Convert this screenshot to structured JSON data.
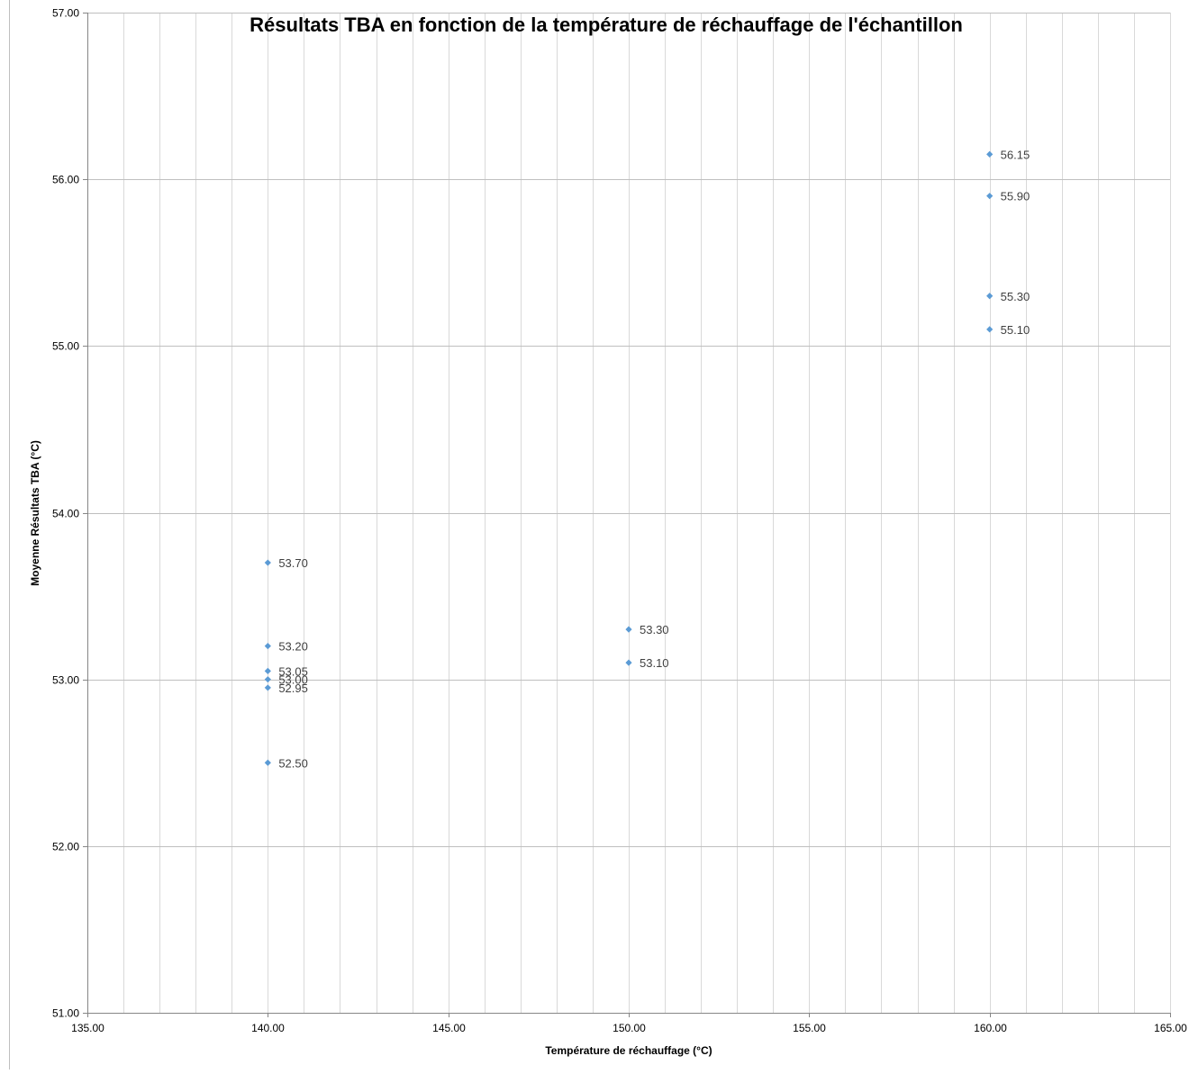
{
  "chart_data": {
    "type": "scatter",
    "title": "Résultats TBA en fonction de la température de réchauffage de l'échantillon",
    "xlabel": "Température de réchauffage (°C)",
    "ylabel": "Moyenne Résultats TBA (°C)",
    "xlim": [
      135,
      165
    ],
    "ylim": [
      51,
      57
    ],
    "x_major_step": 5,
    "x_minor_step": 1,
    "y_major_step": 1,
    "x_tick_labels": [
      "135.00",
      "140.00",
      "145.00",
      "150.00",
      "155.00",
      "160.00",
      "165.00"
    ],
    "y_tick_labels": [
      "51.00",
      "52.00",
      "53.00",
      "54.00",
      "55.00",
      "56.00",
      "57.00"
    ],
    "grid": "on",
    "legend": "none",
    "marker_color": "#5b9bd5",
    "series": [
      {
        "x": [
          140,
          140,
          140,
          140,
          140,
          140,
          150,
          150,
          160,
          160,
          160,
          160
        ],
        "y": [
          53.7,
          53.2,
          53.05,
          53.0,
          52.95,
          52.5,
          53.3,
          53.1,
          56.15,
          55.9,
          55.3,
          55.1
        ],
        "labels": [
          "53.70",
          "53.20",
          "53.05",
          "53.00",
          "52.95",
          "52.50",
          "53.30",
          "53.10",
          "56.15",
          "55.90",
          "55.30",
          "55.10"
        ]
      }
    ]
  }
}
